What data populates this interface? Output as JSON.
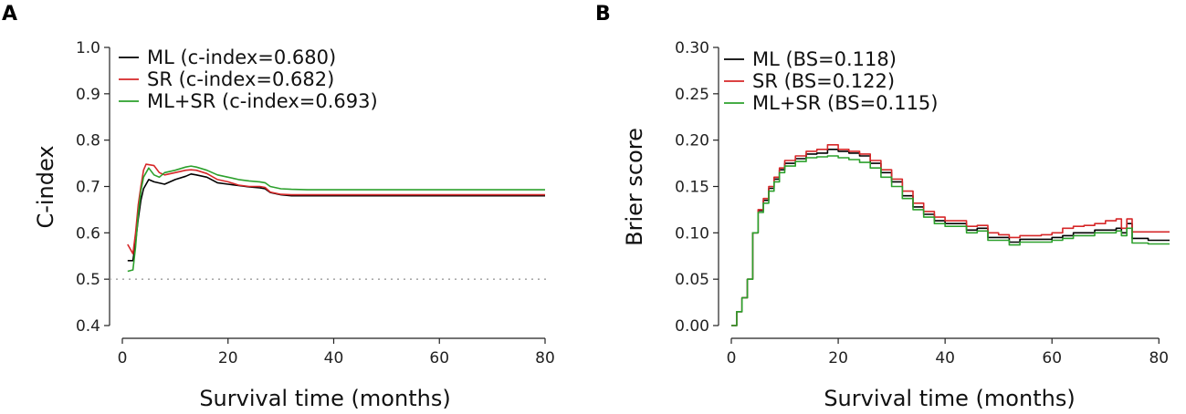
{
  "panels": [
    {
      "label": "A"
    },
    {
      "label": "B"
    }
  ],
  "chart_data": [
    {
      "type": "line",
      "panel": "A",
      "ylabel": "C-index",
      "xlabel": "Survival time (months)",
      "xlim": [
        0,
        80
      ],
      "ylim": [
        0.4,
        1.0
      ],
      "xticks": [
        "0",
        "20",
        "40",
        "60",
        "80"
      ],
      "yticks": [
        "0.4",
        "0.5",
        "0.6",
        "0.7",
        "0.8",
        "0.9",
        "1.0"
      ],
      "reference_line": {
        "y": 0.5,
        "style": "dotted"
      },
      "legend_position": "top-left",
      "series": [
        {
          "name": "ML (c-index=0.680)",
          "color": "#000000",
          "x": [
            1,
            2,
            2.5,
            3,
            3.5,
            4,
            5,
            6,
            8,
            10,
            12,
            13,
            14,
            16,
            18,
            20,
            22,
            24,
            26,
            27,
            28,
            30,
            32,
            35,
            40,
            60,
            80
          ],
          "y": [
            0.54,
            0.54,
            0.58,
            0.63,
            0.67,
            0.695,
            0.715,
            0.71,
            0.705,
            0.715,
            0.722,
            0.727,
            0.725,
            0.72,
            0.708,
            0.705,
            0.702,
            0.699,
            0.697,
            0.695,
            0.687,
            0.682,
            0.68,
            0.68,
            0.68,
            0.68,
            0.68
          ]
        },
        {
          "name": "SR (c-index=0.682)",
          "color": "#d62728",
          "x": [
            1,
            2,
            2.5,
            3,
            3.5,
            4,
            4.5,
            6,
            7,
            8,
            10,
            12,
            13,
            14,
            16,
            18,
            20,
            22,
            24,
            26,
            27,
            28,
            30,
            32,
            35,
            40,
            60,
            80
          ],
          "y": [
            0.575,
            0.555,
            0.6,
            0.66,
            0.7,
            0.735,
            0.748,
            0.745,
            0.73,
            0.725,
            0.73,
            0.735,
            0.736,
            0.735,
            0.728,
            0.715,
            0.71,
            0.703,
            0.7,
            0.7,
            0.698,
            0.688,
            0.683,
            0.682,
            0.682,
            0.682,
            0.682,
            0.682
          ]
        },
        {
          "name": "ML+SR (c-index=0.693)",
          "color": "#2ca02c",
          "x": [
            1,
            2,
            2.5,
            3,
            3.5,
            4,
            5,
            6,
            7,
            8,
            10,
            12,
            13,
            14,
            16,
            18,
            20,
            22,
            24,
            26,
            27,
            28,
            30,
            32,
            35,
            40,
            60,
            80
          ],
          "y": [
            0.517,
            0.52,
            0.57,
            0.64,
            0.69,
            0.72,
            0.74,
            0.725,
            0.72,
            0.73,
            0.735,
            0.742,
            0.744,
            0.742,
            0.735,
            0.725,
            0.72,
            0.715,
            0.712,
            0.71,
            0.708,
            0.7,
            0.695,
            0.694,
            0.693,
            0.693,
            0.693,
            0.693
          ]
        }
      ]
    },
    {
      "type": "line",
      "panel": "B",
      "ylabel": "Brier score",
      "xlabel": "Survival time (months)",
      "xlim": [
        0,
        82
      ],
      "ylim": [
        0,
        0.3
      ],
      "xticks": [
        "0",
        "20",
        "40",
        "60",
        "80"
      ],
      "yticks": [
        "0.00",
        "0.05",
        "0.10",
        "0.15",
        "0.20",
        "0.25",
        "0.30"
      ],
      "legend_position": "top-left",
      "series": [
        {
          "name": "ML (BS=0.118)",
          "color": "#000000",
          "x": [
            0,
            1,
            2,
            3,
            4,
            5,
            6,
            7,
            8,
            9,
            10,
            12,
            14,
            16,
            18,
            20,
            22,
            24,
            26,
            28,
            30,
            32,
            34,
            36,
            38,
            40,
            42,
            44,
            46,
            48,
            50,
            52,
            54,
            56,
            58,
            60,
            62,
            64,
            66,
            68,
            70,
            72,
            73,
            74,
            75,
            76,
            78,
            80,
            82
          ],
          "y": [
            0.0,
            0.015,
            0.03,
            0.05,
            0.1,
            0.124,
            0.135,
            0.148,
            0.158,
            0.168,
            0.175,
            0.18,
            0.185,
            0.186,
            0.19,
            0.188,
            0.186,
            0.183,
            0.175,
            0.165,
            0.155,
            0.14,
            0.128,
            0.12,
            0.113,
            0.11,
            0.11,
            0.103,
            0.105,
            0.095,
            0.095,
            0.09,
            0.093,
            0.093,
            0.093,
            0.095,
            0.097,
            0.1,
            0.1,
            0.103,
            0.103,
            0.105,
            0.1,
            0.11,
            0.094,
            0.094,
            0.092,
            0.092,
            0.092
          ]
        },
        {
          "name": "SR (BS=0.122)",
          "color": "#d62728",
          "x": [
            0,
            1,
            2,
            3,
            4,
            5,
            6,
            7,
            8,
            9,
            10,
            12,
            14,
            16,
            18,
            20,
            22,
            24,
            26,
            28,
            30,
            32,
            34,
            36,
            38,
            40,
            42,
            44,
            46,
            48,
            50,
            52,
            54,
            56,
            58,
            60,
            62,
            64,
            66,
            68,
            70,
            72,
            73,
            74,
            75,
            76,
            78,
            80,
            82
          ],
          "y": [
            0.0,
            0.015,
            0.03,
            0.05,
            0.1,
            0.125,
            0.137,
            0.15,
            0.16,
            0.17,
            0.178,
            0.183,
            0.188,
            0.19,
            0.195,
            0.19,
            0.188,
            0.185,
            0.178,
            0.168,
            0.158,
            0.145,
            0.132,
            0.123,
            0.117,
            0.113,
            0.113,
            0.107,
            0.108,
            0.1,
            0.098,
            0.095,
            0.097,
            0.097,
            0.098,
            0.1,
            0.105,
            0.107,
            0.108,
            0.11,
            0.113,
            0.115,
            0.105,
            0.115,
            0.101,
            0.101,
            0.101,
            0.101,
            0.101
          ]
        },
        {
          "name": "ML+SR (BS=0.115)",
          "color": "#2ca02c",
          "x": [
            0,
            1,
            2,
            3,
            4,
            5,
            6,
            7,
            8,
            9,
            10,
            12,
            14,
            16,
            18,
            20,
            22,
            24,
            26,
            28,
            30,
            32,
            34,
            36,
            38,
            40,
            42,
            44,
            46,
            48,
            50,
            52,
            54,
            56,
            58,
            60,
            62,
            64,
            66,
            68,
            70,
            72,
            73,
            74,
            75,
            76,
            78,
            80,
            82
          ],
          "y": [
            0.0,
            0.015,
            0.03,
            0.05,
            0.1,
            0.122,
            0.132,
            0.145,
            0.155,
            0.165,
            0.172,
            0.177,
            0.181,
            0.182,
            0.183,
            0.181,
            0.179,
            0.176,
            0.17,
            0.16,
            0.15,
            0.137,
            0.125,
            0.117,
            0.11,
            0.107,
            0.107,
            0.1,
            0.102,
            0.092,
            0.092,
            0.087,
            0.09,
            0.09,
            0.09,
            0.092,
            0.094,
            0.097,
            0.097,
            0.1,
            0.1,
            0.102,
            0.097,
            0.105,
            0.089,
            0.089,
            0.088,
            0.088,
            0.088
          ]
        }
      ]
    }
  ]
}
